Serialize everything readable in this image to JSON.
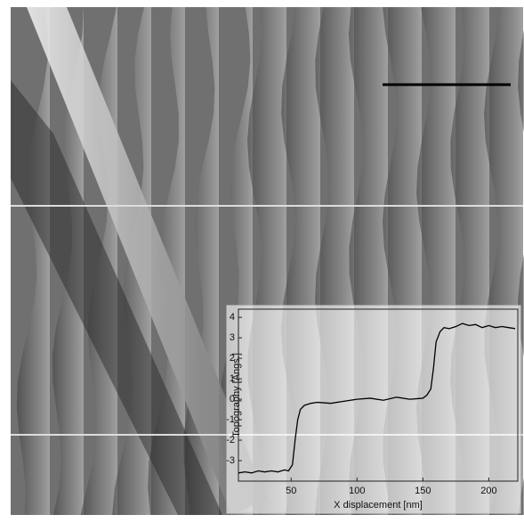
{
  "chart_data": {
    "type": "line",
    "x_label": "X displacement [nm]",
    "y_label": "Topography [Angs.]",
    "xlim": [
      10,
      222
    ],
    "xticks": [
      50,
      100,
      150,
      200
    ],
    "ylim": [
      -4,
      4.4
    ],
    "yticks": [
      -3,
      -2,
      -1,
      0,
      1,
      2,
      3,
      4
    ],
    "series": [
      {
        "color": "#000000",
        "x": [
          10,
          15,
          20,
          25,
          30,
          35,
          40,
          45,
          48,
          51,
          53,
          55,
          57,
          60,
          65,
          70,
          80,
          90,
          100,
          110,
          120,
          130,
          140,
          150,
          153,
          156,
          158,
          160,
          163,
          166,
          170,
          175,
          180,
          185,
          190,
          195,
          200,
          205,
          210,
          215,
          220
        ],
        "values": [
          -3.6,
          -3.55,
          -3.6,
          -3.5,
          -3.55,
          -3.5,
          -3.55,
          -3.45,
          -3.5,
          -3.2,
          -2.0,
          -1.0,
          -0.5,
          -0.3,
          -0.2,
          -0.15,
          -0.2,
          -0.1,
          0.0,
          0.05,
          -0.05,
          0.1,
          0.0,
          0.05,
          0.2,
          0.5,
          1.5,
          2.8,
          3.3,
          3.5,
          3.45,
          3.55,
          3.7,
          3.6,
          3.65,
          3.5,
          3.6,
          3.5,
          3.55,
          3.5,
          3.45
        ]
      }
    ]
  }
}
